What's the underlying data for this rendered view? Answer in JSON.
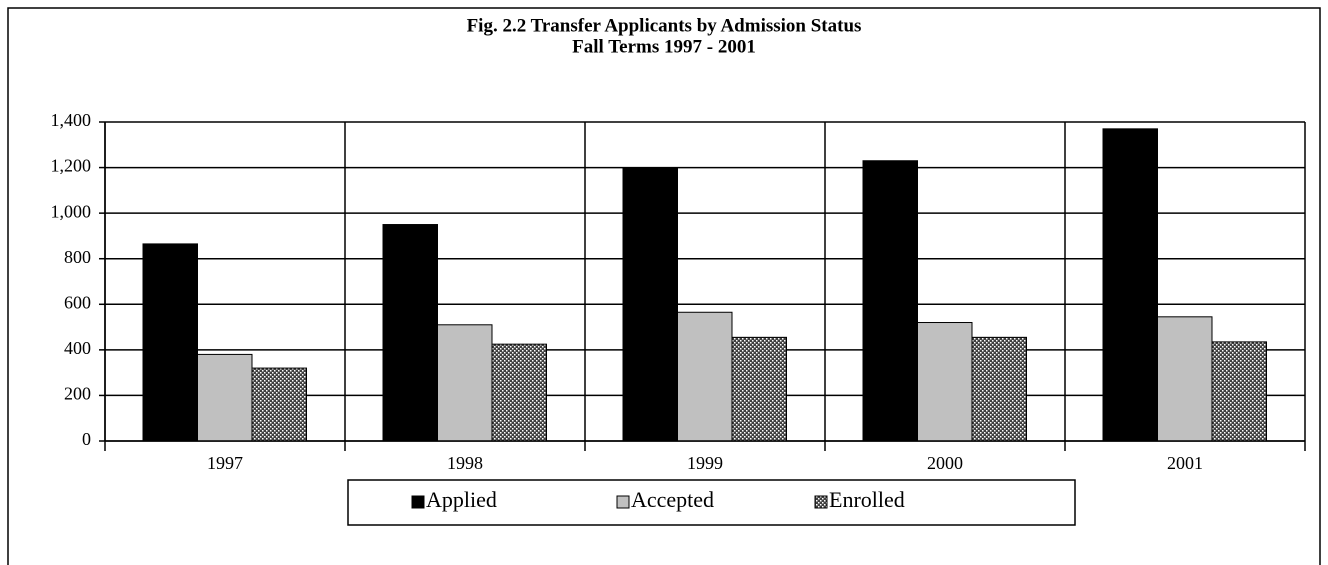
{
  "chart_data": {
    "type": "bar",
    "title": "Fig. 2.2  Transfer Applicants by Admission Status",
    "subtitle": "Fall Terms 1997 - 2001",
    "categories": [
      "1997",
      "1998",
      "1999",
      "2000",
      "2001"
    ],
    "series": [
      {
        "name": "Applied",
        "color": "#000000",
        "values": [
          865,
          950,
          1200,
          1230,
          1370
        ]
      },
      {
        "name": "Accepted",
        "color": "#c0c0c0",
        "values": [
          380,
          510,
          565,
          520,
          545
        ]
      },
      {
        "name": "Enrolled",
        "color": "#404040",
        "pattern": "dots",
        "values": [
          320,
          425,
          455,
          455,
          435
        ]
      }
    ],
    "ylim": [
      0,
      1400
    ],
    "yticks": [
      0,
      200,
      400,
      600,
      800,
      {
        "value": 1000,
        "label": "1,000"
      },
      {
        "value": 1200,
        "label": "1,200"
      },
      {
        "value": 1400,
        "label": "1,400"
      }
    ],
    "grid": true,
    "legend": "bottom"
  }
}
